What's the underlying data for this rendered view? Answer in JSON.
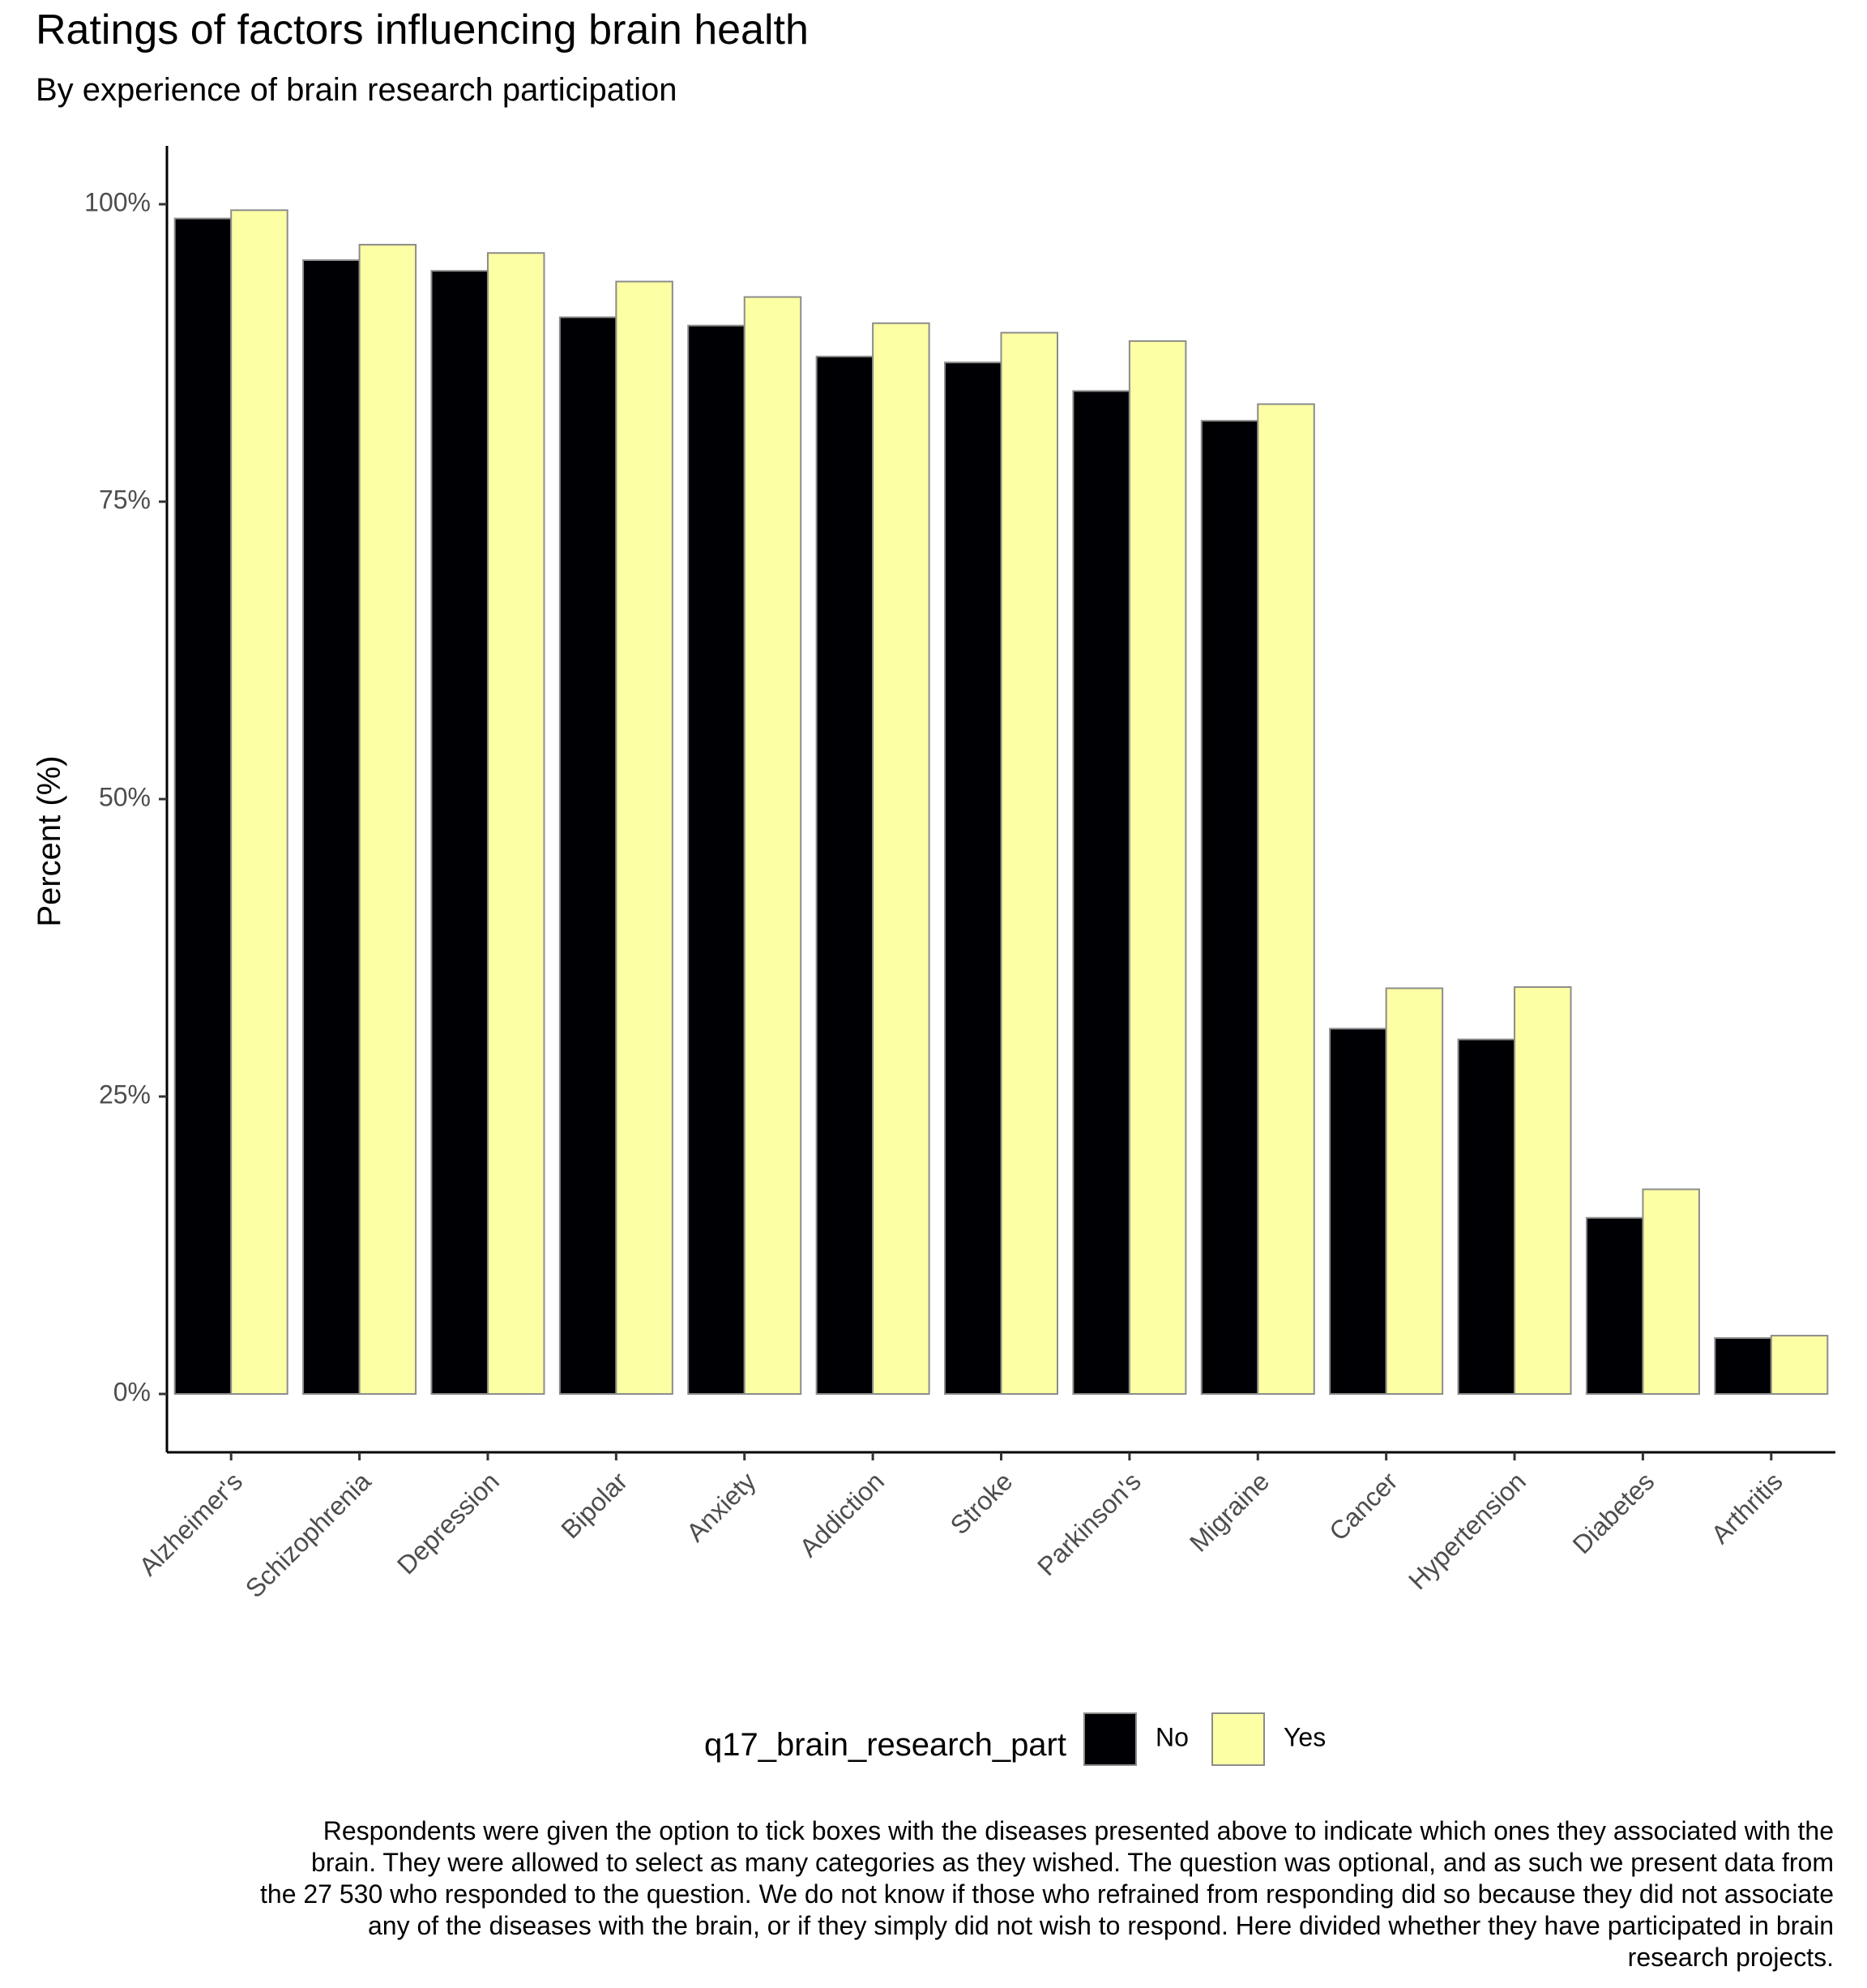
{
  "chart_data": {
    "type": "bar",
    "title": "Ratings of factors influencing brain health",
    "subtitle": "By experience of brain research participation",
    "xlabel": "",
    "ylabel": "Percent (%)",
    "ylim": [
      0,
      1.05
    ],
    "y_ticks": [
      0,
      0.25,
      0.5,
      0.75,
      1.0
    ],
    "y_tick_labels": [
      "0%",
      "25%",
      "50%",
      "75%",
      "100%"
    ],
    "grid": false,
    "categories": [
      "Alzheimer's",
      "Schizophrenia",
      "Depression",
      "Bipolar",
      "Anxiety",
      "Addiction",
      "Stroke",
      "Parkinson's",
      "Migraine",
      "Cancer",
      "Hypertension",
      "Diabetes",
      "Arthritis"
    ],
    "series": [
      {
        "name": "No",
        "color": "#000004",
        "values": [
          0.988,
          0.953,
          0.944,
          0.905,
          0.898,
          0.872,
          0.867,
          0.843,
          0.818,
          0.307,
          0.298,
          0.148,
          0.047
        ]
      },
      {
        "name": "Yes",
        "color": "#FCFFA4",
        "values": [
          0.995,
          0.966,
          0.959,
          0.935,
          0.922,
          0.9,
          0.892,
          0.885,
          0.832,
          0.341,
          0.342,
          0.172,
          0.049
        ]
      }
    ],
    "legend": {
      "title": "q17_brain_research_part",
      "placement": "bottom"
    },
    "caption_lines": [
      "Respondents were given the option to tick boxes with the diseases presented above to indicate which ones they associated with the",
      "brain. They were allowed to select as many categories as they wished. The question was optional, and as such we present data from",
      "the 27 530 who responded to the question. We do not know if those who refrained from responding did so because they did not associate",
      "any of the diseases with the brain, or if they simply did not wish to respond. Here divided whether they have participated in brain",
      "research projects."
    ]
  }
}
